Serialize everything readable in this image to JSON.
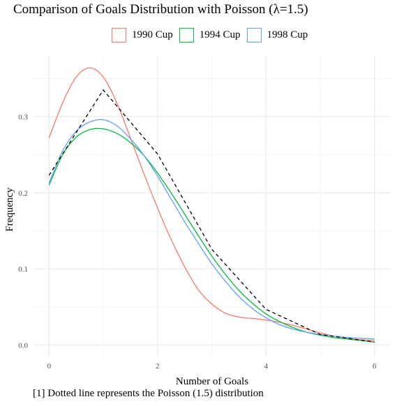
{
  "chart_data": {
    "type": "line",
    "title": "Comparison of Goals Distribution with Poisson (λ=1.5)",
    "xlabel": "Number of Goals",
    "ylabel": "Frequency",
    "caption": "[1] Dotted line represents the Poisson (1.5) distribution",
    "xlim": [
      -0.3,
      6.3
    ],
    "ylim": [
      -0.015,
      0.38
    ],
    "xticks": [
      0,
      2,
      4,
      6
    ],
    "yticks": [
      0.0,
      0.1,
      0.2,
      0.3
    ],
    "xtick_labels": [
      "0",
      "2",
      "4",
      "6"
    ],
    "ytick_labels": [
      "0.0",
      "0.1",
      "0.2",
      "0.3"
    ],
    "grid": true,
    "legend_position": "top",
    "series": [
      {
        "name": "1990 Cup",
        "color": "#F8766D",
        "style": "solid",
        "x": [
          0,
          0.25,
          0.5,
          0.75,
          1.0,
          1.25,
          1.5,
          1.75,
          2.0,
          2.25,
          2.5,
          2.75,
          3.0,
          3.25,
          3.5,
          3.75,
          4.0,
          4.25,
          4.5,
          4.75,
          5.0,
          5.25,
          5.5,
          5.75,
          6.0
        ],
        "y": [
          0.272,
          0.318,
          0.352,
          0.364,
          0.352,
          0.318,
          0.272,
          0.225,
          0.18,
          0.139,
          0.103,
          0.073,
          0.054,
          0.042,
          0.037,
          0.035,
          0.033,
          0.03,
          0.026,
          0.021,
          0.016,
          0.012,
          0.009,
          0.007,
          0.006
        ]
      },
      {
        "name": "1994 Cup",
        "color": "#00BA38",
        "style": "solid",
        "x": [
          0,
          0.25,
          0.5,
          0.75,
          1.0,
          1.25,
          1.5,
          1.75,
          2.0,
          2.25,
          2.5,
          2.75,
          3.0,
          3.25,
          3.5,
          3.75,
          4.0,
          4.25,
          4.5,
          4.75,
          5.0,
          5.25,
          5.5,
          5.75,
          6.0
        ],
        "y": [
          0.21,
          0.25,
          0.273,
          0.283,
          0.284,
          0.278,
          0.266,
          0.249,
          0.226,
          0.2,
          0.172,
          0.144,
          0.117,
          0.093,
          0.072,
          0.055,
          0.041,
          0.031,
          0.023,
          0.017,
          0.013,
          0.01,
          0.008,
          0.006,
          0.004
        ]
      },
      {
        "name": "1998 Cup",
        "color": "#619CFF",
        "style": "solid",
        "x": [
          0,
          0.25,
          0.5,
          0.75,
          1.0,
          1.25,
          1.5,
          1.75,
          2.0,
          2.25,
          2.5,
          2.75,
          3.0,
          3.25,
          3.5,
          3.75,
          4.0,
          4.25,
          4.5,
          4.75,
          5.0,
          5.25,
          5.5,
          5.75,
          6.0
        ],
        "y": [
          0.213,
          0.255,
          0.281,
          0.293,
          0.296,
          0.288,
          0.271,
          0.249,
          0.222,
          0.192,
          0.162,
          0.134,
          0.107,
          0.084,
          0.064,
          0.048,
          0.036,
          0.027,
          0.021,
          0.017,
          0.014,
          0.012,
          0.01,
          0.009,
          0.008
        ]
      },
      {
        "name": "",
        "color": "#000000",
        "style": "dashed",
        "x": [
          0,
          1,
          2,
          3,
          4,
          5,
          6
        ],
        "y": [
          0.223,
          0.335,
          0.251,
          0.126,
          0.047,
          0.014,
          0.004
        ]
      }
    ]
  }
}
